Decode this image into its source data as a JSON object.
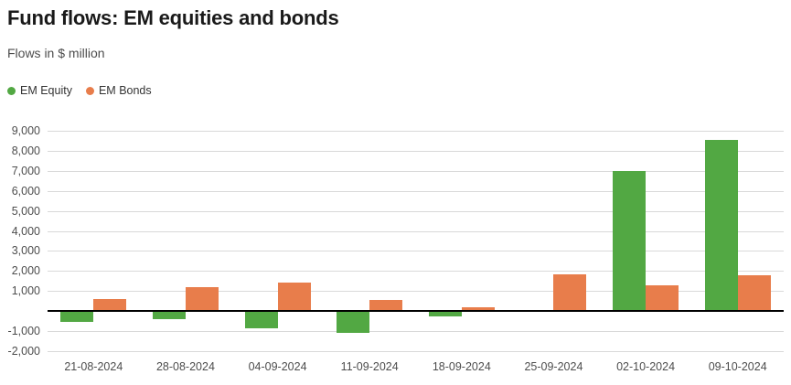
{
  "header": {
    "title": "Fund flows: EM equities and bonds",
    "subtitle": "Flows in $ million"
  },
  "chart_data": {
    "type": "bar",
    "title": "Fund flows: EM equities and bonds",
    "subtitle": "Flows in $ million",
    "xlabel": "",
    "ylabel": "Flows in $ million",
    "categories": [
      "21-08-2024",
      "28-08-2024",
      "04-09-2024",
      "11-09-2024",
      "18-09-2024",
      "25-09-2024",
      "02-10-2024",
      "09-10-2024"
    ],
    "series": [
      {
        "name": "EM Equity",
        "color": "#52a843",
        "values": [
          -530,
          -400,
          -880,
          -1070,
          -280,
          0,
          7000,
          8550
        ]
      },
      {
        "name": "EM Bonds",
        "color": "#e87d4b",
        "values": [
          600,
          1200,
          1430,
          550,
          180,
          1850,
          1300,
          1800
        ]
      }
    ],
    "ylim": [
      -2000,
      9000
    ],
    "ytick_step": 1000,
    "y_ticks": [
      {
        "value": 9000,
        "label": "9,000"
      },
      {
        "value": 8000,
        "label": "8,000"
      },
      {
        "value": 7000,
        "label": "7,000"
      },
      {
        "value": 6000,
        "label": "6,000"
      },
      {
        "value": 5000,
        "label": "5,000"
      },
      {
        "value": 4000,
        "label": "4,000"
      },
      {
        "value": 3000,
        "label": "3,000"
      },
      {
        "value": 2000,
        "label": "2,000"
      },
      {
        "value": 1000,
        "label": "1,000"
      },
      {
        "value": -1000,
        "label": "-1,000"
      },
      {
        "value": -2000,
        "label": "-2,000"
      }
    ],
    "zero_line": true,
    "grid": true,
    "legend_position": "top-left"
  },
  "colors": {
    "grid": "#d9d9d9",
    "zero_line": "#000000",
    "title_text": "#1a1a1a",
    "muted_text": "#4d4d4d",
    "em_equity": "#52a843",
    "em_bonds": "#e87d4b"
  }
}
